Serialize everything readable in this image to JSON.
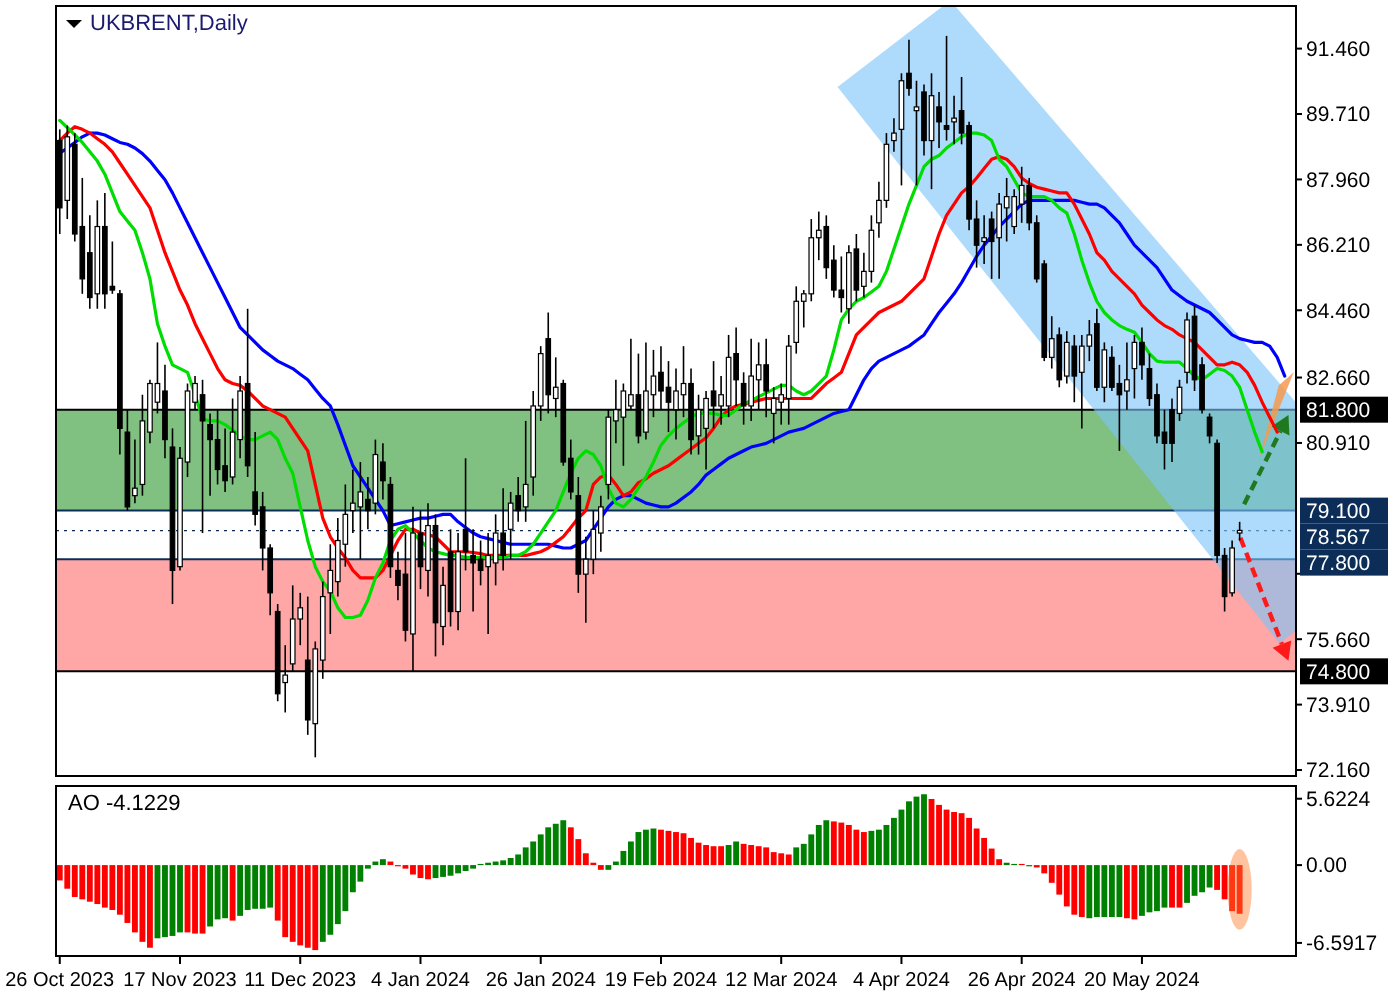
{
  "chart_data": [
    {
      "type": "candlestick",
      "title": "UKBRENT,Daily",
      "tick_labels": "y",
      "categories": [
        null,
        null,
        null,
        null,
        null,
        null,
        null,
        null,
        null,
        null,
        null,
        null,
        null,
        null,
        null,
        null,
        null,
        null,
        null,
        null,
        null,
        null,
        null,
        null,
        null,
        null,
        null,
        null,
        null,
        null,
        null,
        null,
        null,
        null,
        null,
        null,
        null,
        null,
        null,
        null,
        null,
        null,
        null,
        null,
        null,
        null,
        null,
        null,
        null,
        null,
        null,
        null,
        null,
        null,
        null,
        null,
        null,
        null,
        null,
        null,
        null,
        null,
        null,
        null,
        null,
        null,
        null,
        null,
        null,
        null,
        null,
        null,
        null,
        null,
        null,
        null,
        null,
        null,
        null,
        null,
        null,
        null,
        null,
        null,
        null,
        null,
        null,
        null,
        null,
        null,
        null,
        null,
        null,
        null,
        null,
        null,
        null,
        null,
        null,
        null,
        null,
        null,
        null,
        null,
        null,
        null,
        null,
        null,
        null,
        null,
        null,
        null,
        null,
        null,
        null,
        null,
        null,
        null,
        null,
        null,
        null,
        null,
        null,
        null,
        null,
        null,
        null,
        null,
        null,
        null,
        null,
        null,
        null,
        null,
        null,
        null,
        null,
        null,
        null,
        null,
        null,
        null,
        null,
        null,
        null,
        null,
        null,
        null,
        null,
        null,
        null,
        null,
        null,
        null,
        null,
        null,
        null,
        null,
        null,
        null,
        null,
        null,
        null,
        null,
        null
      ],
      "ohlc": [
        [
          89.0,
          89.3,
          86.5,
          87.2
        ],
        [
          87.4,
          89.4,
          86.9,
          89.1
        ],
        [
          88.9,
          89.2,
          86.3,
          86.5
        ],
        [
          86.7,
          88.0,
          84.9,
          85.3
        ],
        [
          86.0,
          87.0,
          84.5,
          84.8
        ],
        [
          84.9,
          87.4,
          84.5,
          86.7
        ],
        [
          86.7,
          87.6,
          84.5,
          84.9
        ],
        [
          85.1,
          86.3,
          84.9,
          85.0
        ],
        [
          84.9,
          85.0,
          80.6,
          81.3
        ],
        [
          81.2,
          81.8,
          79.1,
          79.2
        ],
        [
          79.5,
          81.0,
          79.3,
          79.7
        ],
        [
          79.8,
          82.2,
          79.5,
          81.5
        ],
        [
          81.2,
          82.6,
          80.9,
          82.5
        ],
        [
          82.0,
          83.6,
          81.7,
          82.5
        ],
        [
          82.3,
          83.0,
          80.5,
          81.0
        ],
        [
          80.8,
          81.3,
          76.6,
          77.5
        ],
        [
          77.6,
          80.8,
          77.5,
          80.5
        ],
        [
          80.4,
          82.5,
          80.0,
          82.3
        ],
        [
          82.0,
          82.7,
          81.8,
          82.5
        ],
        [
          82.2,
          82.6,
          78.5,
          81.5
        ],
        [
          81.4,
          81.7,
          79.5,
          81.0
        ],
        [
          81.0,
          81.8,
          79.8,
          80.2
        ],
        [
          80.3,
          81.3,
          79.6,
          79.9
        ],
        [
          80.0,
          82.1,
          79.8,
          81.2
        ],
        [
          81.0,
          82.7,
          80.5,
          82.3
        ],
        [
          82.5,
          84.5,
          80.0,
          80.3
        ],
        [
          79.6,
          81.2,
          78.7,
          79.0
        ],
        [
          79.2,
          79.6,
          77.5,
          78.1
        ],
        [
          78.1,
          78.2,
          76.3,
          76.9
        ],
        [
          76.4,
          76.6,
          74.0,
          74.2
        ],
        [
          74.5,
          75.5,
          73.7,
          74.7
        ],
        [
          75.0,
          77.1,
          74.8,
          76.2
        ],
        [
          76.2,
          76.9,
          75.5,
          76.5
        ],
        [
          75.1,
          76.8,
          73.1,
          73.5
        ],
        [
          73.4,
          75.6,
          72.5,
          75.4
        ],
        [
          75.1,
          77.2,
          74.6,
          76.8
        ],
        [
          76.9,
          78.2,
          75.8,
          77.5
        ],
        [
          77.2,
          78.9,
          76.8,
          78.3
        ],
        [
          78.2,
          79.8,
          77.6,
          79.0
        ],
        [
          79.1,
          80.2,
          78.5,
          79.3
        ],
        [
          79.2,
          80.4,
          77.8,
          79.6
        ],
        [
          79.4,
          80.0,
          78.6,
          79.1
        ],
        [
          79.3,
          81.0,
          79.0,
          80.6
        ],
        [
          80.4,
          80.9,
          79.4,
          79.9
        ],
        [
          79.8,
          80.0,
          77.3,
          77.6
        ],
        [
          77.5,
          78.0,
          76.7,
          77.1
        ],
        [
          77.4,
          78.5,
          75.6,
          75.9
        ],
        [
          75.8,
          79.2,
          74.8,
          78.5
        ],
        [
          78.5,
          79.1,
          77.0,
          77.6
        ],
        [
          77.5,
          79.3,
          76.8,
          78.7
        ],
        [
          78.7,
          79.0,
          75.2,
          76.1
        ],
        [
          76.0,
          77.6,
          75.5,
          77.1
        ],
        [
          78.0,
          78.6,
          76.0,
          76.4
        ],
        [
          76.4,
          78.5,
          75.9,
          78.0
        ],
        [
          78.6,
          80.5,
          77.5,
          78.0
        ],
        [
          77.9,
          78.6,
          76.4,
          77.7
        ],
        [
          77.8,
          78.3,
          77.1,
          77.5
        ],
        [
          77.6,
          78.5,
          75.8,
          77.9
        ],
        [
          77.7,
          79.0,
          77.1,
          78.5
        ],
        [
          78.5,
          79.7,
          77.5,
          77.9
        ],
        [
          78.6,
          79.6,
          77.8,
          79.3
        ],
        [
          79.5,
          80.0,
          78.8,
          79.1
        ],
        [
          79.2,
          81.5,
          78.8,
          79.8
        ],
        [
          80.0,
          82.3,
          79.5,
          81.9
        ],
        [
          81.9,
          83.5,
          81.5,
          83.3
        ],
        [
          83.7,
          84.4,
          81.7,
          82.2
        ],
        [
          82.1,
          83.2,
          81.6,
          82.4
        ],
        [
          82.5,
          82.6,
          80.3,
          80.4
        ],
        [
          80.5,
          81.0,
          79.4,
          79.6
        ],
        [
          79.5,
          80.0,
          76.9,
          77.4
        ],
        [
          77.4,
          78.4,
          76.1,
          77.8
        ],
        [
          77.8,
          79.1,
          77.4,
          78.6
        ],
        [
          78.5,
          79.5,
          78.0,
          79.2
        ],
        [
          79.8,
          81.8,
          79.4,
          81.6
        ],
        [
          81.5,
          82.6,
          80.9,
          81.8
        ],
        [
          81.6,
          82.5,
          80.3,
          82.3
        ],
        [
          81.9,
          83.7,
          81.8,
          82.2
        ],
        [
          82.2,
          83.3,
          80.9,
          81.1
        ],
        [
          81.2,
          83.6,
          81.0,
          82.3
        ],
        [
          82.2,
          83.4,
          81.6,
          82.7
        ],
        [
          82.8,
          83.5,
          81.8,
          82.3
        ],
        [
          82.4,
          83.1,
          81.2,
          82.0
        ],
        [
          81.8,
          82.9,
          81.0,
          82.3
        ],
        [
          82.2,
          83.5,
          81.6,
          82.5
        ],
        [
          82.5,
          82.9,
          80.6,
          81.0
        ],
        [
          81.1,
          82.2,
          80.6,
          81.8
        ],
        [
          81.3,
          82.3,
          80.2,
          82.1
        ],
        [
          82.3,
          83.1,
          81.3,
          81.9
        ],
        [
          81.9,
          82.7,
          81.4,
          82.2
        ],
        [
          81.9,
          83.8,
          81.6,
          83.2
        ],
        [
          83.3,
          84.0,
          81.9,
          82.6
        ],
        [
          82.5,
          82.8,
          81.4,
          81.9
        ],
        [
          81.9,
          83.7,
          81.5,
          82.7
        ],
        [
          82.6,
          83.6,
          81.8,
          83.0
        ],
        [
          83.0,
          83.7,
          81.6,
          82.3
        ],
        [
          81.7,
          82.4,
          80.9,
          82.1
        ],
        [
          82.0,
          82.5,
          81.4,
          82.2
        ],
        [
          82.1,
          83.8,
          81.4,
          83.5
        ],
        [
          83.6,
          85.1,
          83.3,
          84.7
        ],
        [
          84.7,
          85.0,
          84.0,
          84.9
        ],
        [
          84.9,
          86.9,
          84.7,
          86.4
        ],
        [
          86.4,
          87.1,
          85.8,
          86.6
        ],
        [
          86.7,
          87.0,
          85.3,
          85.6
        ],
        [
          85.8,
          86.2,
          84.8,
          85.0
        ],
        [
          85.0,
          85.9,
          84.4,
          84.8
        ],
        [
          84.5,
          86.2,
          84.1,
          86.0
        ],
        [
          86.1,
          86.5,
          84.7,
          85.0
        ],
        [
          85.1,
          86.0,
          84.8,
          85.5
        ],
        [
          85.5,
          87.0,
          85.2,
          86.6
        ],
        [
          86.8,
          87.9,
          86.4,
          87.4
        ],
        [
          87.4,
          89.2,
          87.2,
          88.9
        ],
        [
          89.0,
          89.6,
          88.7,
          89.2
        ],
        [
          89.3,
          90.8,
          87.8,
          90.6
        ],
        [
          90.8,
          91.7,
          90.2,
          90.4
        ],
        [
          89.8,
          90.6,
          87.8,
          89.9
        ],
        [
          90.3,
          90.5,
          88.6,
          89.0
        ],
        [
          89.0,
          90.8,
          87.7,
          90.2
        ],
        [
          89.9,
          90.3,
          88.8,
          89.5
        ],
        [
          89.4,
          91.8,
          89.0,
          89.3
        ],
        [
          89.5,
          90.2,
          88.9,
          89.6
        ],
        [
          89.8,
          90.7,
          88.9,
          89.2
        ],
        [
          89.4,
          89.5,
          86.6,
          86.9
        ],
        [
          86.9,
          87.4,
          85.6,
          86.2
        ],
        [
          86.3,
          87.0,
          85.7,
          86.4
        ],
        [
          86.9,
          87.1,
          85.3,
          86.3
        ],
        [
          86.4,
          87.6,
          85.3,
          87.3
        ],
        [
          87.2,
          88.0,
          86.3,
          87.5
        ],
        [
          86.7,
          87.7,
          86.5,
          87.5
        ],
        [
          87.3,
          88.3,
          86.8,
          87.8
        ],
        [
          87.8,
          88.0,
          86.6,
          86.8
        ],
        [
          86.8,
          87.0,
          85.2,
          85.3
        ],
        [
          85.7,
          85.8,
          83.1,
          83.2
        ],
        [
          83.2,
          84.3,
          82.9,
          83.7
        ],
        [
          83.8,
          84.0,
          82.4,
          82.6
        ],
        [
          82.7,
          83.9,
          82.5,
          83.6
        ],
        [
          83.5,
          83.8,
          82.0,
          82.7
        ],
        [
          82.8,
          83.8,
          81.3,
          83.5
        ],
        [
          83.5,
          84.2,
          83.1,
          83.8
        ],
        [
          84.1,
          84.5,
          82.3,
          82.4
        ],
        [
          82.4,
          83.6,
          82.0,
          83.4
        ],
        [
          83.2,
          83.5,
          82.3,
          82.4
        ],
        [
          82.5,
          83.0,
          80.7,
          82.2
        ],
        [
          82.3,
          83.6,
          81.8,
          82.6
        ],
        [
          82.9,
          83.8,
          82.1,
          83.6
        ],
        [
          83.6,
          84.0,
          82.6,
          83.0
        ],
        [
          82.9,
          83.3,
          81.9,
          82.1
        ],
        [
          82.2,
          82.5,
          80.9,
          81.1
        ],
        [
          81.2,
          81.8,
          80.2,
          80.9
        ],
        [
          81.8,
          82.1,
          80.4,
          80.9
        ],
        [
          81.7,
          82.6,
          81.5,
          82.4
        ],
        [
          82.8,
          84.4,
          82.5,
          84.2
        ],
        [
          84.3,
          84.6,
          82.3,
          82.6
        ],
        [
          83.0,
          83.2,
          81.7,
          81.8
        ],
        [
          81.6,
          81.7,
          80.9,
          81.1
        ],
        [
          80.9,
          81.0,
          77.7,
          77.9
        ],
        [
          77.9,
          78.1,
          76.4,
          76.8
        ],
        [
          76.9,
          78.3,
          76.8,
          78.1
        ],
        [
          78.5,
          78.8,
          78.3,
          78.57
        ],
        null,
        null,
        null,
        null,
        null,
        null,
        null
      ],
      "series": [
        {
          "type": "line",
          "color": "#0000ff",
          "values": [
            88.66,
            88.8,
            88.95,
            89.1,
            89.2,
            89.2,
            89.15,
            89.05,
            88.95,
            88.9,
            88.8,
            88.65,
            88.45,
            88.2,
            87.95,
            87.6,
            87.2,
            86.8,
            86.4,
            86.0,
            85.6,
            85.2,
            84.8,
            84.4,
            84.0,
            83.8,
            83.6,
            83.4,
            83.25,
            83.1,
            83.0,
            82.9,
            82.75,
            82.6,
            82.35,
            82.1,
            81.9,
            81.4,
            80.85,
            80.3,
            80.0,
            79.7,
            79.4,
            79.1,
            78.7,
            78.75,
            78.8,
            78.85,
            78.9,
            78.9,
            78.95,
            79.0,
            79.0,
            78.8,
            78.65,
            78.5,
            78.4,
            78.35,
            78.3,
            78.25,
            78.2,
            78.2,
            78.2,
            78.2,
            78.2,
            78.2,
            78.15,
            78.1,
            78.1,
            78.2,
            78.3,
            78.6,
            78.9,
            79.2,
            79.4,
            79.5,
            79.5,
            79.4,
            79.3,
            79.25,
            79.2,
            79.2,
            79.3,
            79.45,
            79.6,
            79.8,
            80.05,
            80.2,
            80.35,
            80.5,
            80.6,
            80.7,
            80.8,
            80.85,
            80.9,
            81.0,
            81.1,
            81.2,
            81.25,
            81.3,
            81.4,
            81.5,
            81.6,
            81.7,
            81.75,
            81.8,
            82.2,
            82.6,
            82.9,
            83.1,
            83.2,
            83.3,
            83.4,
            83.5,
            83.65,
            83.8,
            84.1,
            84.4,
            84.65,
            84.9,
            85.2,
            85.55,
            85.9,
            86.2,
            86.45,
            86.7,
            86.9,
            87.1,
            87.3,
            87.4,
            87.4,
            87.4,
            87.4,
            87.4,
            87.4,
            87.4,
            87.35,
            87.3,
            87.3,
            87.2,
            87.0,
            86.8,
            86.5,
            86.2,
            86.0,
            85.8,
            85.6,
            85.3,
            85.0,
            84.85,
            84.7,
            84.6,
            84.5,
            84.4,
            84.2,
            84.0,
            83.8,
            83.7,
            83.65,
            83.6,
            83.6,
            83.5,
            83.2,
            82.7,
            null
          ]
        },
        {
          "type": "line",
          "color": "#ff0000",
          "values": [
            89.0,
            89.2,
            89.37,
            89.3,
            89.2,
            89.05,
            88.9,
            88.7,
            88.4,
            88.1,
            87.8,
            87.5,
            87.2,
            86.6,
            86.0,
            85.5,
            85.0,
            84.6,
            84.1,
            83.7,
            83.3,
            82.9,
            82.6,
            82.5,
            82.45,
            82.3,
            82.1,
            81.9,
            81.8,
            81.7,
            81.6,
            81.3,
            81.0,
            80.7,
            79.8,
            78.9,
            78.4,
            78.1,
            77.84,
            77.5,
            77.3,
            77.3,
            77.3,
            77.5,
            77.9,
            78.3,
            78.6,
            78.6,
            78.5,
            78.45,
            78.4,
            78.2,
            78.0,
            78.0,
            78.0,
            77.98,
            77.95,
            77.9,
            77.9,
            77.9,
            77.9,
            77.9,
            77.9,
            77.95,
            78.0,
            78.1,
            78.25,
            78.4,
            78.65,
            78.9,
            79.1,
            79.8,
            80.0,
            80.05,
            79.8,
            79.5,
            79.6,
            79.85,
            79.95,
            80.1,
            80.2,
            80.3,
            80.45,
            80.6,
            80.75,
            80.9,
            81.05,
            81.3,
            81.6,
            81.8,
            81.9,
            81.95,
            82.0,
            82.05,
            82.1,
            82.1,
            82.1,
            82.1,
            82.1,
            82.1,
            82.1,
            82.3,
            82.5,
            82.65,
            82.8,
            83.3,
            83.8,
            84.0,
            84.2,
            84.4,
            84.5,
            84.6,
            84.7,
            84.9,
            85.1,
            85.3,
            85.9,
            86.5,
            87.0,
            87.3,
            87.6,
            87.77,
            88.0,
            88.25,
            88.5,
            88.57,
            88.5,
            88.3,
            88.0,
            87.85,
            87.75,
            87.7,
            87.65,
            87.6,
            87.6,
            87.3,
            86.9,
            86.5,
            86.0,
            85.8,
            85.5,
            85.3,
            85.1,
            84.9,
            84.6,
            84.4,
            84.2,
            84.05,
            83.95,
            83.8,
            83.7,
            83.6,
            83.4,
            83.2,
            83.0,
            83.0,
            83.07,
            83.0,
            82.8,
            82.45,
            82.0,
            81.6,
            81.2,
            null,
            null
          ]
        },
        {
          "type": "line",
          "color": "#00dd00",
          "values": [
            89.54,
            89.35,
            89.15,
            88.95,
            88.7,
            88.45,
            88.1,
            87.6,
            87.1,
            86.85,
            86.6,
            86.0,
            85.3,
            84.1,
            83.5,
            83.0,
            82.9,
            82.8,
            82.2,
            81.55,
            81.5,
            81.5,
            81.4,
            81.25,
            81.1,
            81.0,
            81.0,
            81.1,
            81.2,
            81.0,
            80.5,
            80.1,
            79.2,
            78.3,
            77.6,
            77.2,
            76.95,
            76.5,
            76.24,
            76.24,
            76.3,
            76.7,
            77.3,
            77.7,
            78.3,
            78.6,
            78.7,
            78.5,
            78.3,
            78.1,
            78.0,
            77.95,
            77.9,
            77.9,
            77.85,
            77.85,
            77.84,
            77.84,
            77.84,
            77.85,
            77.9,
            77.9,
            78.0,
            78.2,
            78.5,
            78.8,
            79.1,
            79.6,
            80.1,
            80.5,
            80.7,
            80.6,
            80.3,
            79.7,
            79.3,
            79.2,
            79.4,
            79.7,
            80.0,
            80.4,
            80.85,
            81.1,
            81.3,
            81.45,
            81.6,
            81.7,
            81.7,
            81.7,
            81.65,
            81.65,
            81.8,
            81.95,
            82.05,
            82.15,
            82.25,
            82.35,
            82.45,
            82.45,
            82.3,
            82.2,
            82.3,
            82.5,
            82.7,
            83.4,
            84.2,
            84.5,
            84.7,
            84.8,
            84.95,
            85.1,
            85.5,
            86.1,
            86.7,
            87.3,
            87.8,
            88.3,
            88.5,
            88.6,
            88.8,
            88.95,
            89.1,
            89.2,
            89.2,
            89.15,
            89.0,
            88.5,
            88.3,
            87.95,
            87.6,
            87.5,
            87.5,
            87.5,
            87.4,
            87.2,
            87.06,
            86.5,
            85.8,
            85.2,
            84.7,
            84.4,
            84.2,
            84.05,
            83.95,
            83.87,
            83.6,
            83.3,
            83.1,
            83.07,
            83.07,
            83.07,
            82.9,
            82.7,
            82.6,
            82.75,
            82.9,
            82.85,
            82.7,
            82.4,
            81.8,
            81.2,
            80.67,
            null,
            null,
            null,
            null
          ]
        }
      ],
      "bands": [
        {
          "axis": "y",
          "from": 79.1,
          "to": 81.8,
          "color": "#80c080"
        },
        {
          "axis": "y",
          "from": 74.8,
          "to": 77.8,
          "color": "#ffa6a6"
        }
      ],
      "ref_lines": [
        {
          "axis": "y",
          "value": 81.8,
          "label": "81.800",
          "color": "#000000"
        },
        {
          "axis": "y",
          "value": 79.1,
          "label": "79.100",
          "color": "#0c2d57"
        },
        {
          "axis": "y",
          "value": 78.567,
          "label": "78.567",
          "color": "#0c2d57",
          "line_style": "dotted"
        },
        {
          "axis": "y",
          "value": 77.8,
          "label": "77.800",
          "color": "#0c2d57"
        },
        {
          "axis": "y",
          "value": 74.8,
          "label": "74.800",
          "color": "#000000"
        }
      ],
      "ylim": [
        72.0,
        92.6
      ],
      "yticks": [
        {
          "value": 91.46,
          "label": "91.460"
        },
        {
          "value": 89.71,
          "label": "89.710"
        },
        {
          "value": 87.96,
          "label": "87.960"
        },
        {
          "value": 86.21,
          "label": "86.210"
        },
        {
          "value": 84.46,
          "label": "84.460"
        },
        {
          "value": 82.66,
          "label": "82.660"
        },
        {
          "value": 80.91,
          "label": "80.910"
        },
        {
          "value": 77.41,
          "label": null
        },
        {
          "value": 75.66,
          "label": "75.660"
        },
        {
          "value": 73.91,
          "label": "73.910"
        },
        {
          "value": 72.16,
          "label": "72.160"
        }
      ]
    },
    {
      "type": "bar",
      "title": "AO -4.1229",
      "categories": [
        "26 Oct 2023",
        null,
        null,
        null,
        null,
        null,
        null,
        null,
        null,
        null,
        null,
        null,
        null,
        null,
        null,
        null,
        "17 Nov 2023",
        null,
        null,
        null,
        null,
        null,
        null,
        null,
        null,
        null,
        null,
        null,
        null,
        null,
        null,
        null,
        "11 Dec 2023",
        null,
        null,
        null,
        null,
        null,
        null,
        null,
        null,
        null,
        null,
        null,
        null,
        null,
        null,
        null,
        "4 Jan 2024",
        null,
        null,
        null,
        null,
        null,
        null,
        null,
        null,
        null,
        null,
        null,
        null,
        null,
        null,
        null,
        "26 Jan 2024",
        null,
        null,
        null,
        null,
        null,
        null,
        null,
        null,
        null,
        null,
        null,
        null,
        null,
        null,
        null,
        "19 Feb 2024",
        null,
        null,
        null,
        null,
        null,
        null,
        null,
        null,
        null,
        null,
        null,
        null,
        null,
        null,
        null,
        "12 Mar 2024",
        null,
        null,
        null,
        null,
        null,
        null,
        null,
        null,
        null,
        null,
        null,
        null,
        null,
        null,
        null,
        "4 Apr 2024",
        null,
        null,
        null,
        null,
        null,
        null,
        null,
        null,
        null,
        null,
        null,
        null,
        null,
        null,
        null,
        "26 Apr 2024",
        null,
        null,
        null,
        null,
        null,
        null,
        null,
        null,
        null,
        null,
        null,
        null,
        null,
        null,
        null,
        "20 May 2024",
        null,
        null,
        null,
        null,
        null,
        null,
        null,
        null,
        null,
        null,
        null,
        null,
        null,
        null,
        null,
        null,
        null,
        null,
        null,
        null
      ],
      "values": [
        -1.3,
        -2.0,
        -2.7,
        -2.9,
        -3.1,
        -3.3,
        -3.6,
        -3.8,
        -4.2,
        -4.9,
        -5.7,
        -6.5,
        -7.0,
        -6.2,
        -6.1,
        -6.0,
        -5.7,
        -5.7,
        -5.8,
        -5.8,
        -5.2,
        -4.6,
        -4.5,
        -4.7,
        -4.3,
        -3.8,
        -3.7,
        -3.7,
        -3.6,
        -4.7,
        -6.1,
        -6.5,
        -6.8,
        -7.0,
        -7.2,
        -6.5,
        -5.9,
        -5.0,
        -3.9,
        -2.3,
        -1.4,
        -0.3,
        0.3,
        0.5,
        0.3,
        -0.1,
        -0.3,
        -0.8,
        -1.1,
        -1.2,
        -1.1,
        -1.0,
        -0.9,
        -0.7,
        -0.5,
        -0.3,
        0.1,
        0.2,
        0.3,
        0.4,
        0.6,
        0.9,
        1.5,
        2.0,
        2.6,
        3.2,
        3.5,
        3.8,
        3.2,
        2.2,
        1.0,
        0.2,
        -0.4,
        -0.4,
        0.3,
        1.2,
        2.0,
        2.8,
        3.0,
        3.1,
        3.0,
        2.9,
        2.8,
        2.7,
        2.3,
        1.9,
        1.7,
        1.6,
        1.6,
        1.7,
        2.0,
        1.8,
        1.7,
        1.6,
        1.5,
        1.1,
        1.0,
        0.9,
        1.5,
        1.8,
        2.6,
        3.4,
        3.8,
        3.7,
        3.6,
        3.4,
        3.0,
        2.8,
        2.9,
        3.0,
        3.4,
        4.0,
        4.7,
        5.4,
        5.8,
        6.0,
        5.6,
        5.1,
        4.7,
        4.5,
        4.4,
        4.0,
        3.1,
        2.3,
        1.4,
        0.5,
        0.2,
        0.1,
        0.1,
        -0.1,
        -0.2,
        -0.7,
        -1.5,
        -2.5,
        -3.5,
        -4.2,
        -4.4,
        -4.5,
        -4.4,
        -4.4,
        -4.4,
        -4.4,
        -4.5,
        -4.6,
        -4.3,
        -4.0,
        -3.9,
        -3.6,
        -3.6,
        -3.6,
        -3.2,
        -2.6,
        -2.3,
        -1.9,
        -2.1,
        -2.9,
        -3.9,
        -4.1229,
        null,
        null,
        null,
        null,
        null,
        null,
        null
      ],
      "colors": [
        "#ff0000",
        "#ff0000",
        "#ff0000",
        "#ff0000",
        "#ff0000",
        "#ff0000",
        "#ff0000",
        "#ff0000",
        "#ff0000",
        "#ff0000",
        "#ff0000",
        "#ff0000",
        "#ff0000",
        "#008000",
        "#008000",
        "#008000",
        "#008000",
        "#ff0000",
        "#ff0000",
        "#ff0000",
        "#008000",
        "#008000",
        "#008000",
        "#ff0000",
        "#008000",
        "#008000",
        "#008000",
        "#008000",
        "#008000",
        "#ff0000",
        "#ff0000",
        "#ff0000",
        "#ff0000",
        "#ff0000",
        "#ff0000",
        "#008000",
        "#008000",
        "#008000",
        "#008000",
        "#008000",
        "#008000",
        "#008000",
        "#008000",
        "#008000",
        "#ff0000",
        "#ff0000",
        "#ff0000",
        "#ff0000",
        "#ff0000",
        "#ff0000",
        "#008000",
        "#008000",
        "#008000",
        "#008000",
        "#008000",
        "#008000",
        "#008000",
        "#008000",
        "#008000",
        "#008000",
        "#008000",
        "#008000",
        "#008000",
        "#008000",
        "#008000",
        "#008000",
        "#008000",
        "#008000",
        "#ff0000",
        "#ff0000",
        "#ff0000",
        "#ff0000",
        "#ff0000",
        "#008000",
        "#008000",
        "#008000",
        "#008000",
        "#008000",
        "#008000",
        "#008000",
        "#ff0000",
        "#ff0000",
        "#ff0000",
        "#ff0000",
        "#ff0000",
        "#ff0000",
        "#ff0000",
        "#ff0000",
        "#ff0000",
        "#008000",
        "#008000",
        "#ff0000",
        "#ff0000",
        "#ff0000",
        "#ff0000",
        "#ff0000",
        "#ff0000",
        "#ff0000",
        "#008000",
        "#008000",
        "#008000",
        "#008000",
        "#008000",
        "#ff0000",
        "#ff0000",
        "#ff0000",
        "#ff0000",
        "#ff0000",
        "#008000",
        "#008000",
        "#008000",
        "#008000",
        "#008000",
        "#008000",
        "#008000",
        "#008000",
        "#ff0000",
        "#ff0000",
        "#ff0000",
        "#ff0000",
        "#ff0000",
        "#ff0000",
        "#ff0000",
        "#ff0000",
        "#ff0000",
        "#ff0000",
        "#008000",
        "#008000",
        "#ff0000",
        "#008000",
        "#ff0000",
        "#ff0000",
        "#ff0000",
        "#ff0000",
        "#ff0000",
        "#ff0000",
        "#ff0000",
        "#008000",
        "#008000",
        "#008000",
        "#008000",
        "#008000",
        "#ff0000",
        "#ff0000",
        "#008000",
        "#008000",
        "#008000",
        "#008000",
        "#ff0000",
        "#ff0000",
        "#008000",
        "#008000",
        "#008000",
        "#008000",
        "#ff0000",
        "#ff0000",
        "#ff0000",
        "#ff0000",
        null,
        null,
        null,
        null,
        null,
        null,
        null
      ],
      "ylim": [
        -7.7,
        6.7
      ],
      "yticks": [
        5.6224,
        {
          "value": 0,
          "label": "0.00"
        },
        -6.5917
      ]
    }
  ]
}
